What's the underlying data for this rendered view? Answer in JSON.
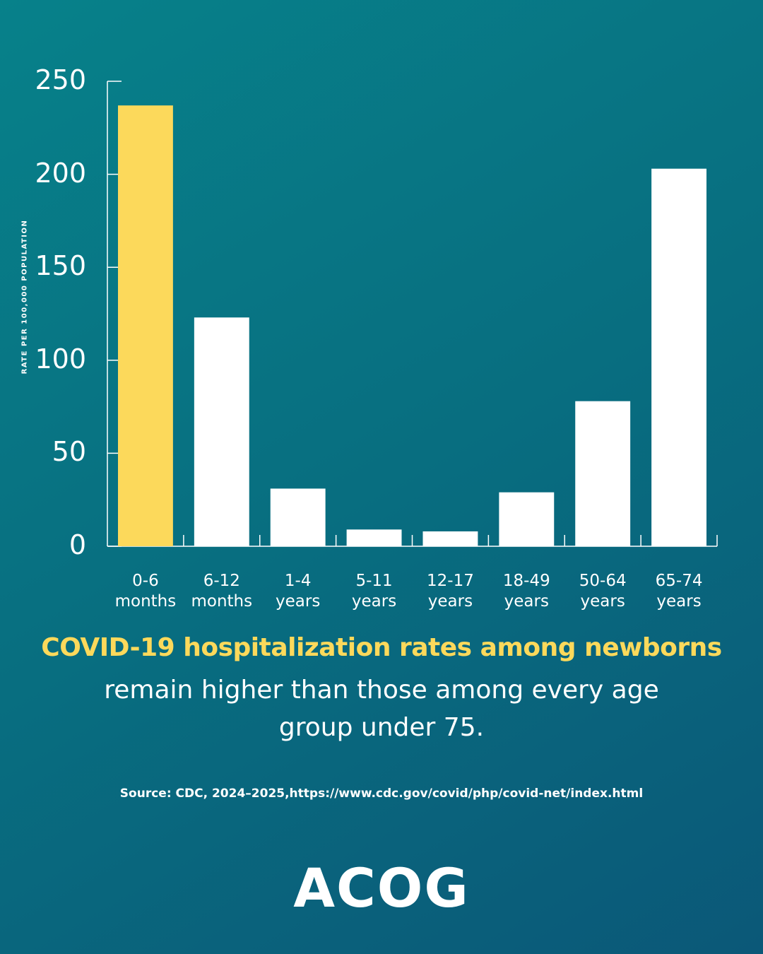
{
  "chart_data": {
    "type": "bar",
    "y_axis_label": "RATE PER 100,000 POPULATION",
    "categories": [
      "0-6 months",
      "6-12 months",
      "1-4 years",
      "5-11 years",
      "12-17 years",
      "18-49 years",
      "50-64 years",
      "65-74 years"
    ],
    "values": [
      237,
      123,
      31,
      9,
      8,
      29,
      78,
      203
    ],
    "colors": [
      "#fcd95b",
      "#ffffff",
      "#ffffff",
      "#ffffff",
      "#ffffff",
      "#ffffff",
      "#ffffff",
      "#ffffff"
    ],
    "ylim": [
      0,
      250
    ],
    "yticks": [
      0,
      50,
      100,
      150,
      200,
      250
    ],
    "title": "COVID-19 hospitalization rates among newborns",
    "subtitle": "remain higher than those among every age group under 75.",
    "source": "Source: CDC, 2024–2025,https://www.cdc.gov/covid/php/covid-net/index.html"
  },
  "logo": "ACOG"
}
